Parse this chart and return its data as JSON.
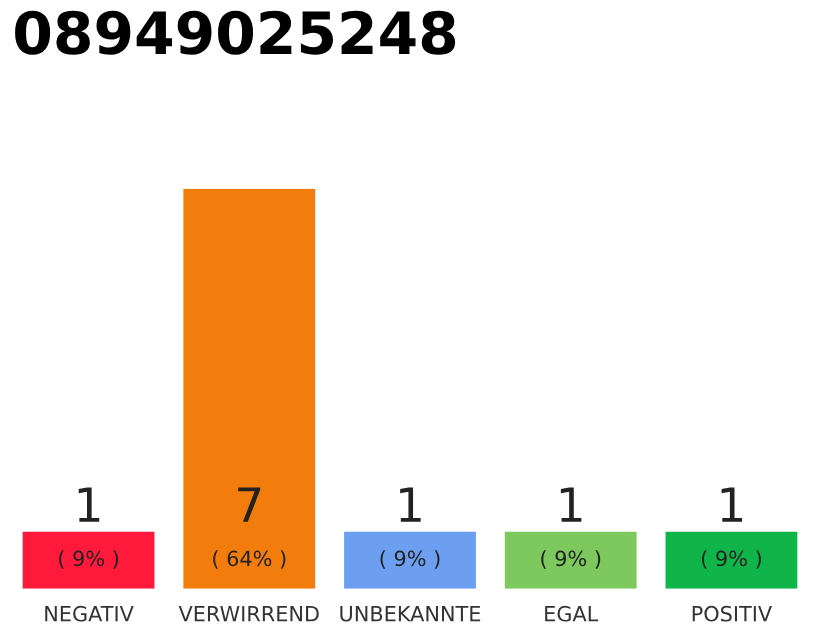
{
  "chart_data": {
    "type": "bar",
    "title": "08949025248",
    "categories": [
      "NEGATIV",
      "VERWIRREND",
      "UNBEKANNTE",
      "EGAL",
      "POSITIV"
    ],
    "values": [
      1,
      7,
      1,
      1,
      1
    ],
    "colors": [
      "#ff1a3c",
      "#f27d0c",
      "#6c9ff0",
      "#7dc95e",
      "#10b54a"
    ],
    "ylim": [
      0,
      7
    ],
    "data_labels": true,
    "grid": false,
    "legend": false,
    "annotations": [
      "( 9% )",
      "( 64% )",
      "( 9% )",
      "( 9% )",
      "( 9% )"
    ]
  }
}
